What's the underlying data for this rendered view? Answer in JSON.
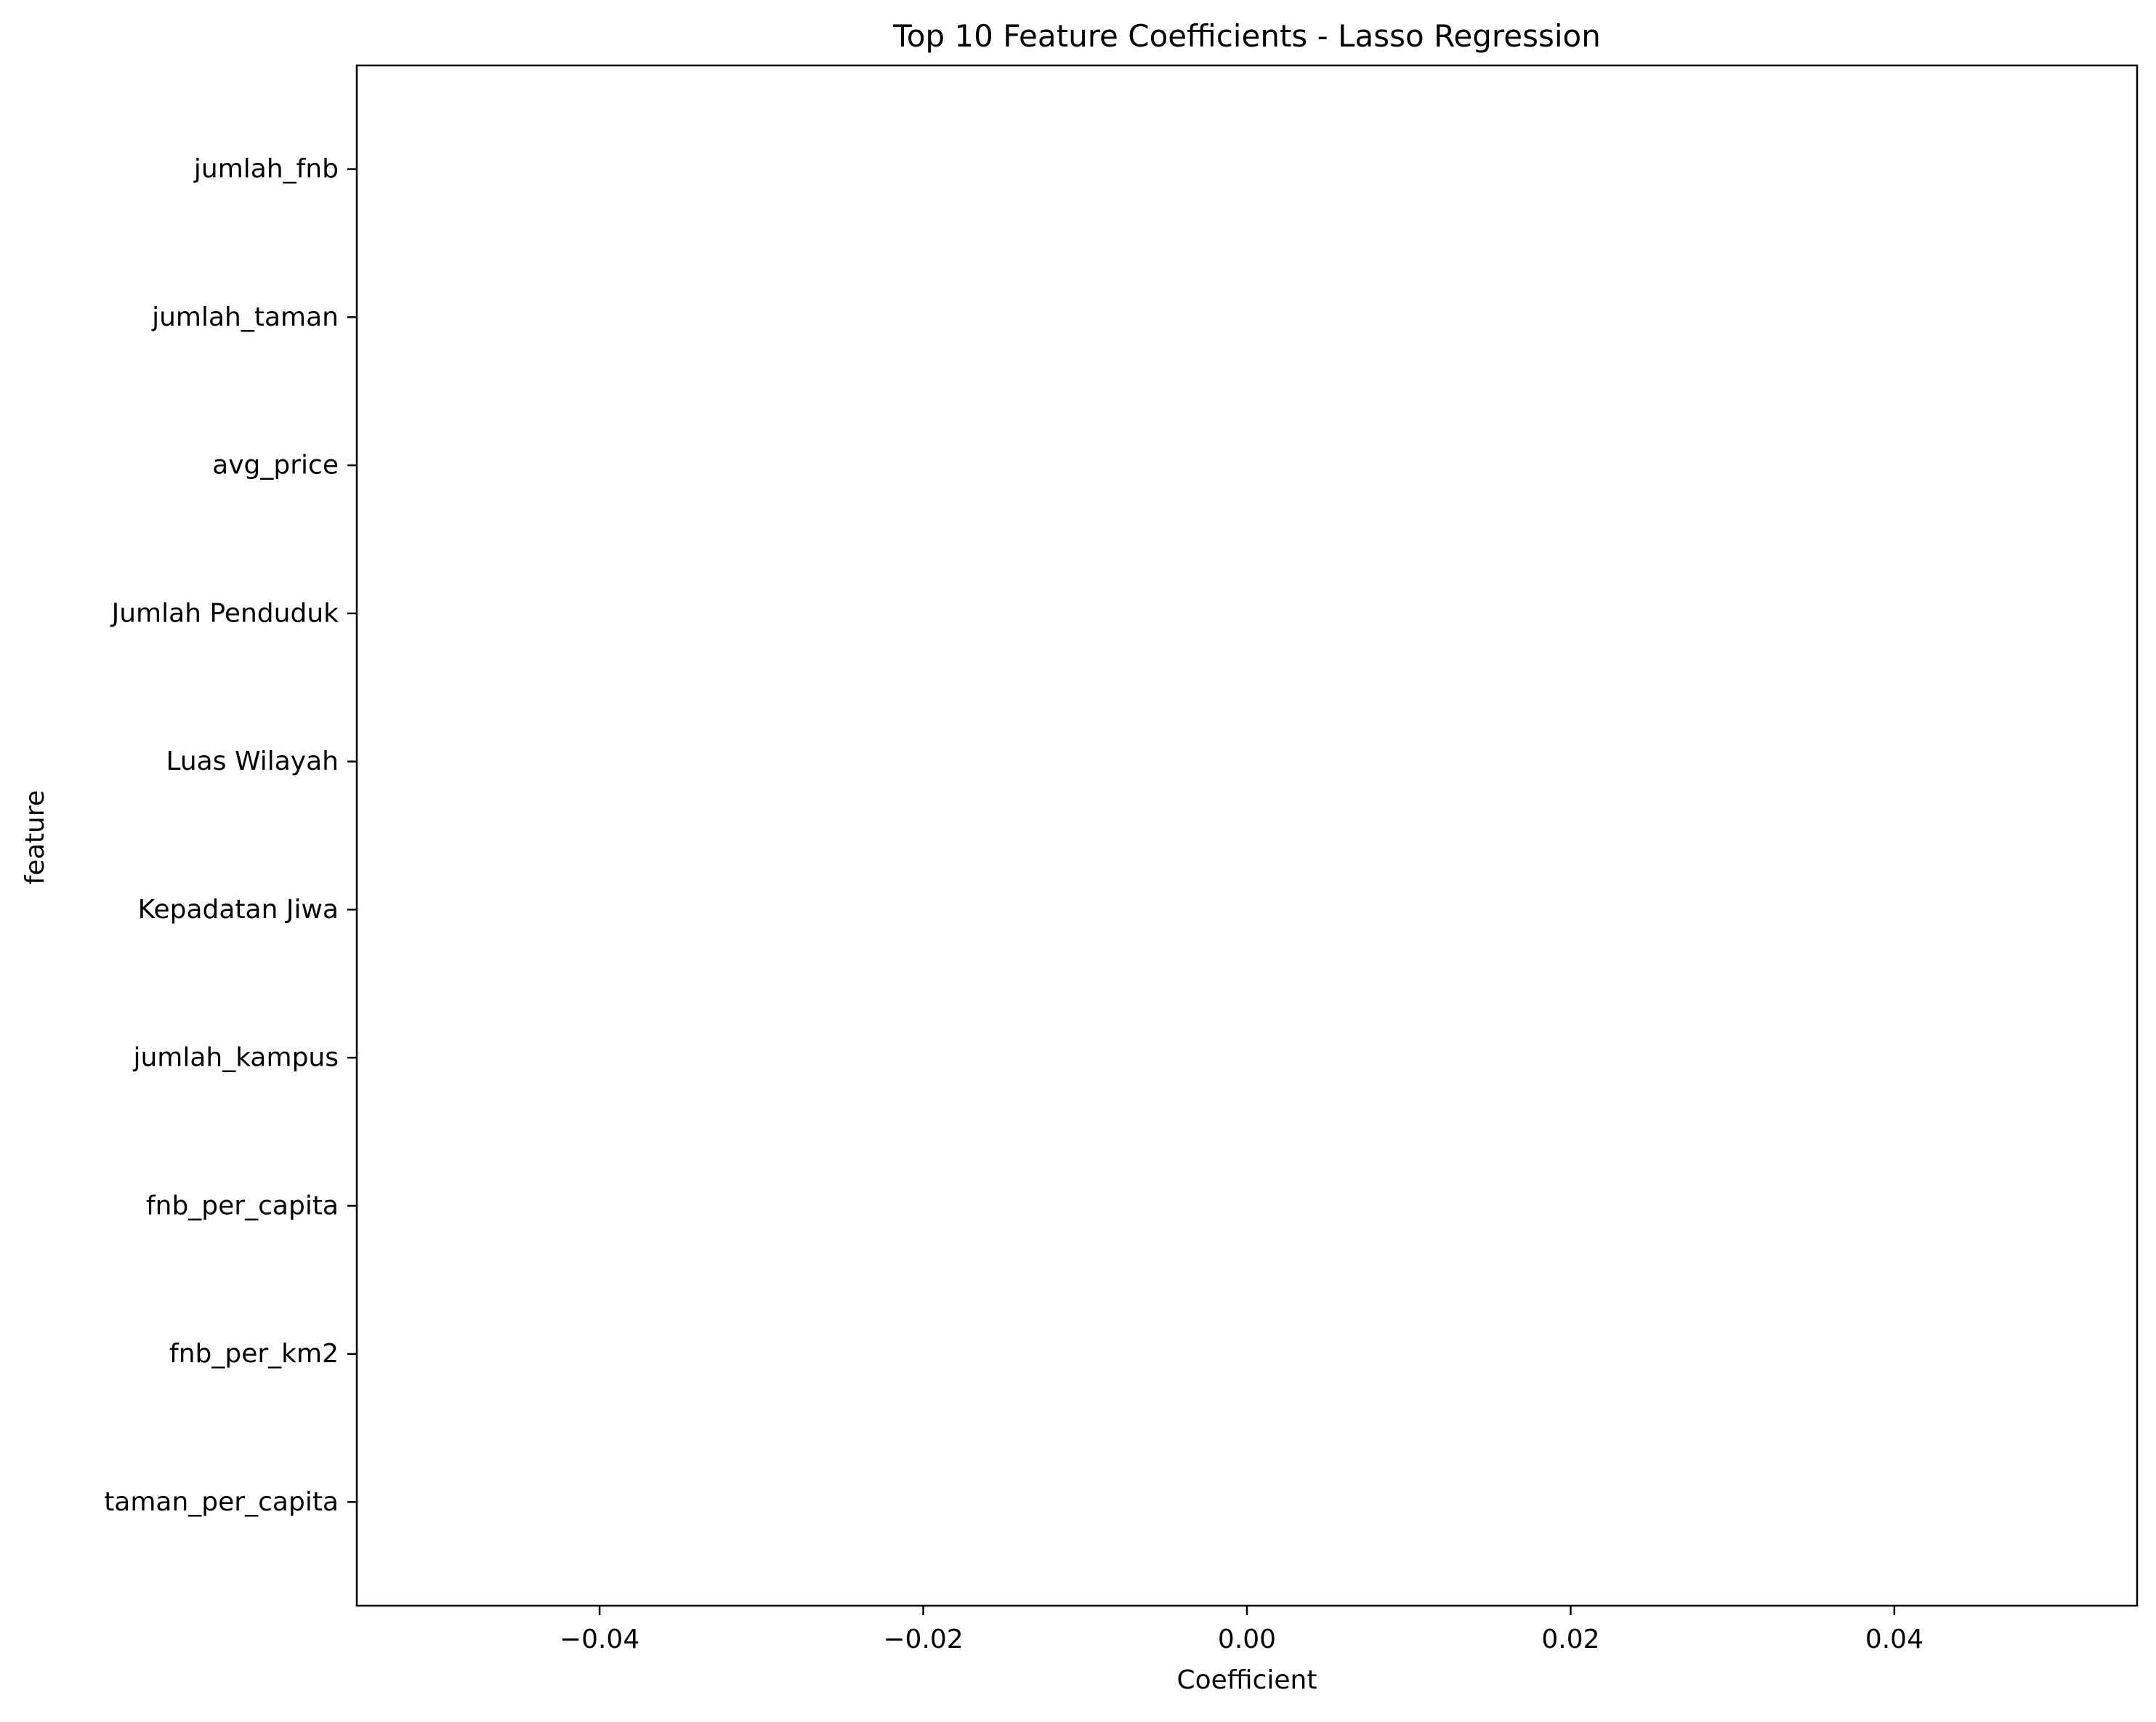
{
  "chart_data": {
    "type": "bar",
    "orientation": "horizontal",
    "title": "Top 10 Feature Coefficients - Lasso Regression",
    "xlabel": "Coefficient",
    "ylabel": "feature",
    "categories": [
      "jumlah_fnb",
      "jumlah_taman",
      "avg_price",
      "Jumlah Penduduk",
      "Luas Wilayah",
      "Kepadatan Jiwa",
      "jumlah_kampus",
      "fnb_per_capita",
      "fnb_per_km2",
      "taman_per_capita"
    ],
    "values": [
      0,
      0,
      0,
      0,
      0,
      0,
      0,
      0,
      0,
      0
    ],
    "xlim": [
      -0.055,
      0.055
    ],
    "xticks": [
      -0.04,
      -0.02,
      0.0,
      0.02,
      0.04
    ],
    "xtick_labels": [
      "−0.04",
      "−0.02",
      "0.00",
      "0.02",
      "0.04"
    ],
    "bar_color": "#1f77b4",
    "grid": false,
    "legend": "none"
  }
}
